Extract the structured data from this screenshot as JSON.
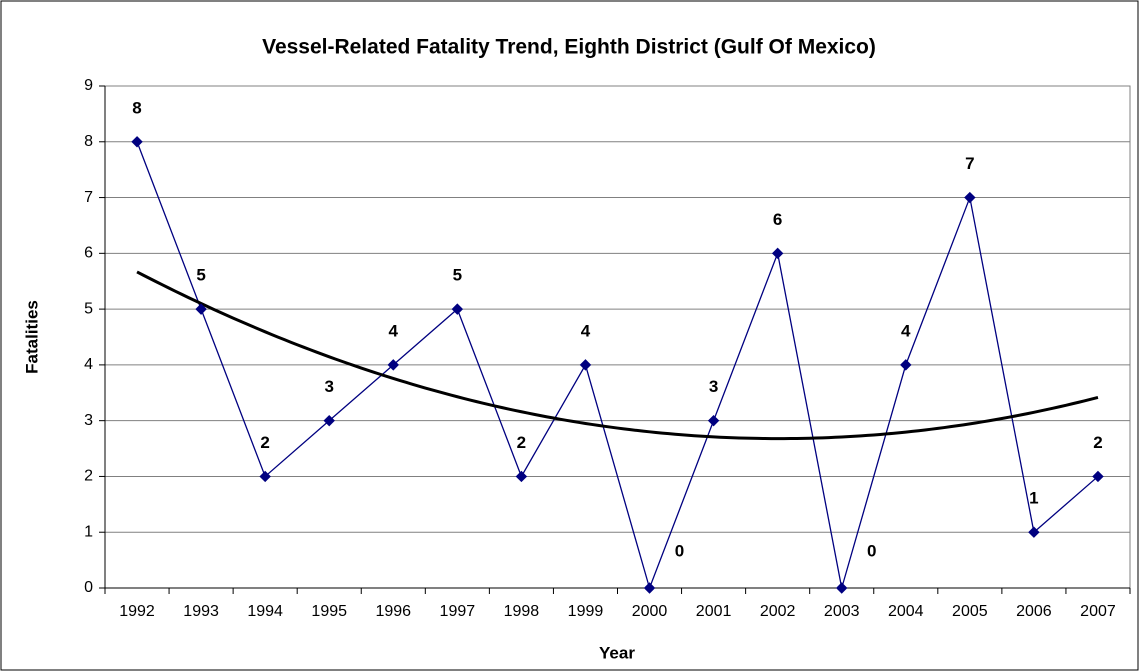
{
  "chart_data": {
    "type": "line",
    "title": "Vessel-Related Fatality Trend, Eighth District (Gulf Of Mexico)",
    "x_label": "Year",
    "y_label": "Fatalities",
    "categories": [
      "1992",
      "1993",
      "1994",
      "1995",
      "1996",
      "1997",
      "1998",
      "1999",
      "2000",
      "2001",
      "2002",
      "2003",
      "2004",
      "2005",
      "2006",
      "2007"
    ],
    "series": [
      {
        "name": "Fatalities",
        "color": "#000080",
        "values": [
          8,
          5,
          2,
          3,
          4,
          5,
          2,
          4,
          0,
          3,
          6,
          0,
          4,
          7,
          1,
          2
        ]
      }
    ],
    "trendline": {
      "type": "polynomial",
      "order": 2,
      "color": "#000000"
    },
    "ylim": [
      0,
      9
    ],
    "yticks": [
      0,
      1,
      2,
      3,
      4,
      5,
      6,
      7,
      8,
      9
    ],
    "grid": true,
    "data_labels": true
  }
}
